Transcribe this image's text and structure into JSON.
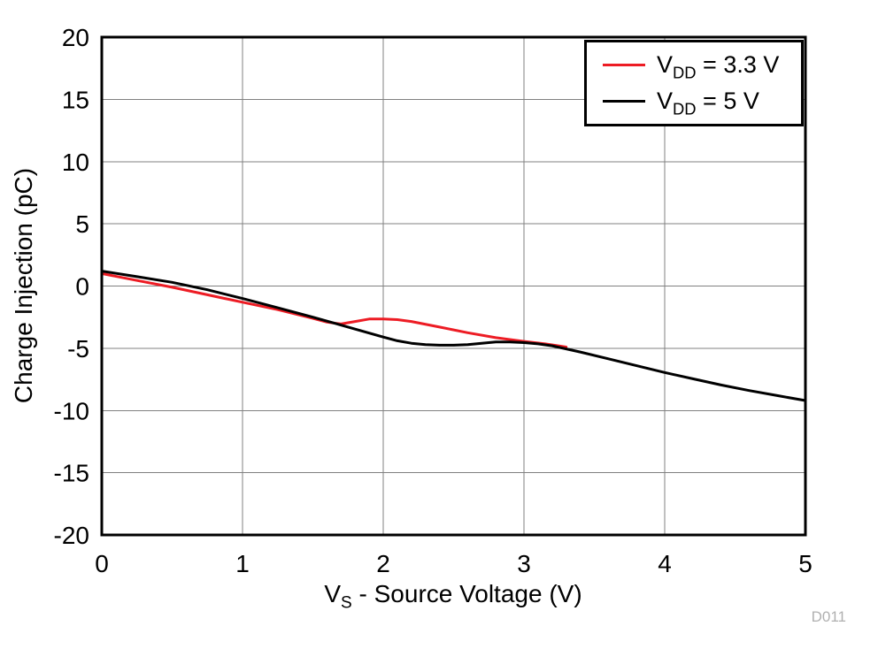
{
  "figure": {
    "ylabel": "Charge Injection (pC)",
    "xlabel_pre": "V",
    "xlabel_sub": "S",
    "xlabel_post": " - Source Voltage (V)",
    "watermark": "D011"
  },
  "legend": {
    "entries": [
      {
        "pre": "V",
        "sub": "DD",
        "post": " = 3.3 V",
        "color": "#ed1c24"
      },
      {
        "pre": "V",
        "sub": "DD",
        "post": " = 5 V",
        "color": "#000000"
      }
    ]
  },
  "chart_data": {
    "type": "line",
    "title": "",
    "xlabel": "VS - Source Voltage (V)",
    "ylabel": "Charge Injection (pC)",
    "xlim": [
      0,
      5
    ],
    "ylim": [
      -20,
      20
    ],
    "x_ticks": [
      0,
      1,
      2,
      3,
      4,
      5
    ],
    "y_ticks": [
      -20,
      -15,
      -10,
      -5,
      0,
      5,
      10,
      15,
      20
    ],
    "grid": true,
    "legend_position": "top-right",
    "annotation": "D011",
    "series": [
      {
        "id": "series-line-vdd-3p3v",
        "name": "VDD = 3.3 V",
        "color": "#ed1c24",
        "x": [
          0,
          0.25,
          0.5,
          0.75,
          1.0,
          1.25,
          1.5,
          1.6,
          1.7,
          1.8,
          1.9,
          2.0,
          2.1,
          2.2,
          2.4,
          2.6,
          2.8,
          3.0,
          3.15,
          3.3
        ],
        "y": [
          1.0,
          0.45,
          -0.1,
          -0.7,
          -1.3,
          -1.9,
          -2.6,
          -2.9,
          -3.05,
          -2.85,
          -2.65,
          -2.65,
          -2.7,
          -2.85,
          -3.3,
          -3.75,
          -4.15,
          -4.45,
          -4.65,
          -4.9
        ]
      },
      {
        "id": "series-line-vdd-5v",
        "name": "VDD = 5 V",
        "color": "#000000",
        "x": [
          0,
          0.25,
          0.5,
          0.75,
          1.0,
          1.25,
          1.5,
          1.75,
          2.0,
          2.1,
          2.2,
          2.3,
          2.4,
          2.5,
          2.6,
          2.7,
          2.8,
          2.9,
          3.0,
          3.1,
          3.2,
          3.4,
          3.6,
          3.8,
          4.0,
          4.2,
          4.4,
          4.6,
          4.8,
          5.0
        ],
        "y": [
          1.2,
          0.75,
          0.3,
          -0.3,
          -1.0,
          -1.75,
          -2.5,
          -3.3,
          -4.1,
          -4.4,
          -4.6,
          -4.7,
          -4.75,
          -4.75,
          -4.7,
          -4.6,
          -4.5,
          -4.5,
          -4.55,
          -4.65,
          -4.8,
          -5.3,
          -5.85,
          -6.4,
          -6.95,
          -7.45,
          -7.95,
          -8.4,
          -8.8,
          -9.2
        ]
      }
    ]
  }
}
